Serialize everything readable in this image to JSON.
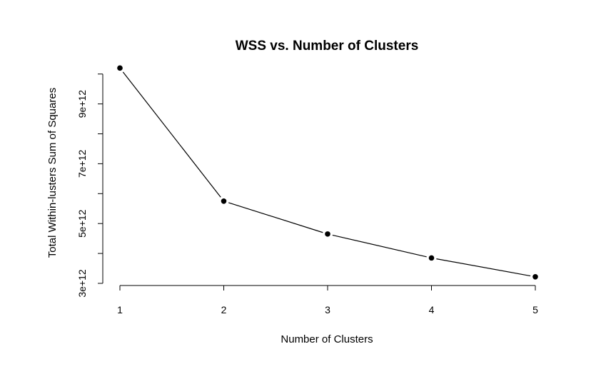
{
  "chart_data": {
    "type": "line",
    "title": "WSS vs. Number of Clusters",
    "xlabel": "Number of Clusters",
    "ylabel": "Total Within-lusters Sum of Squares",
    "x": [
      1,
      2,
      3,
      4,
      5
    ],
    "series": [
      {
        "values": [
          10200000000000,
          5750000000000,
          4650000000000,
          3850000000000,
          3220000000000
        ]
      }
    ],
    "xlim": [
      1,
      5
    ],
    "ylim": [
      3000000000000,
      10200000000000
    ],
    "x_ticks": [
      1,
      2,
      3,
      4,
      5
    ],
    "x_tick_labels": [
      "1",
      "2",
      "3",
      "4",
      "5"
    ],
    "y_ticks_labeled": [
      3000000000000,
      5000000000000,
      7000000000000,
      9000000000000
    ],
    "y_tick_labels": [
      "3e+12",
      "5e+12",
      "7e+12",
      "9e+12"
    ],
    "y_ticks_minor": [
      4000000000000,
      6000000000000,
      8000000000000,
      10000000000000
    ],
    "grid": false,
    "legend": "none",
    "line_color": "#000000",
    "marker_color": "#000000"
  }
}
